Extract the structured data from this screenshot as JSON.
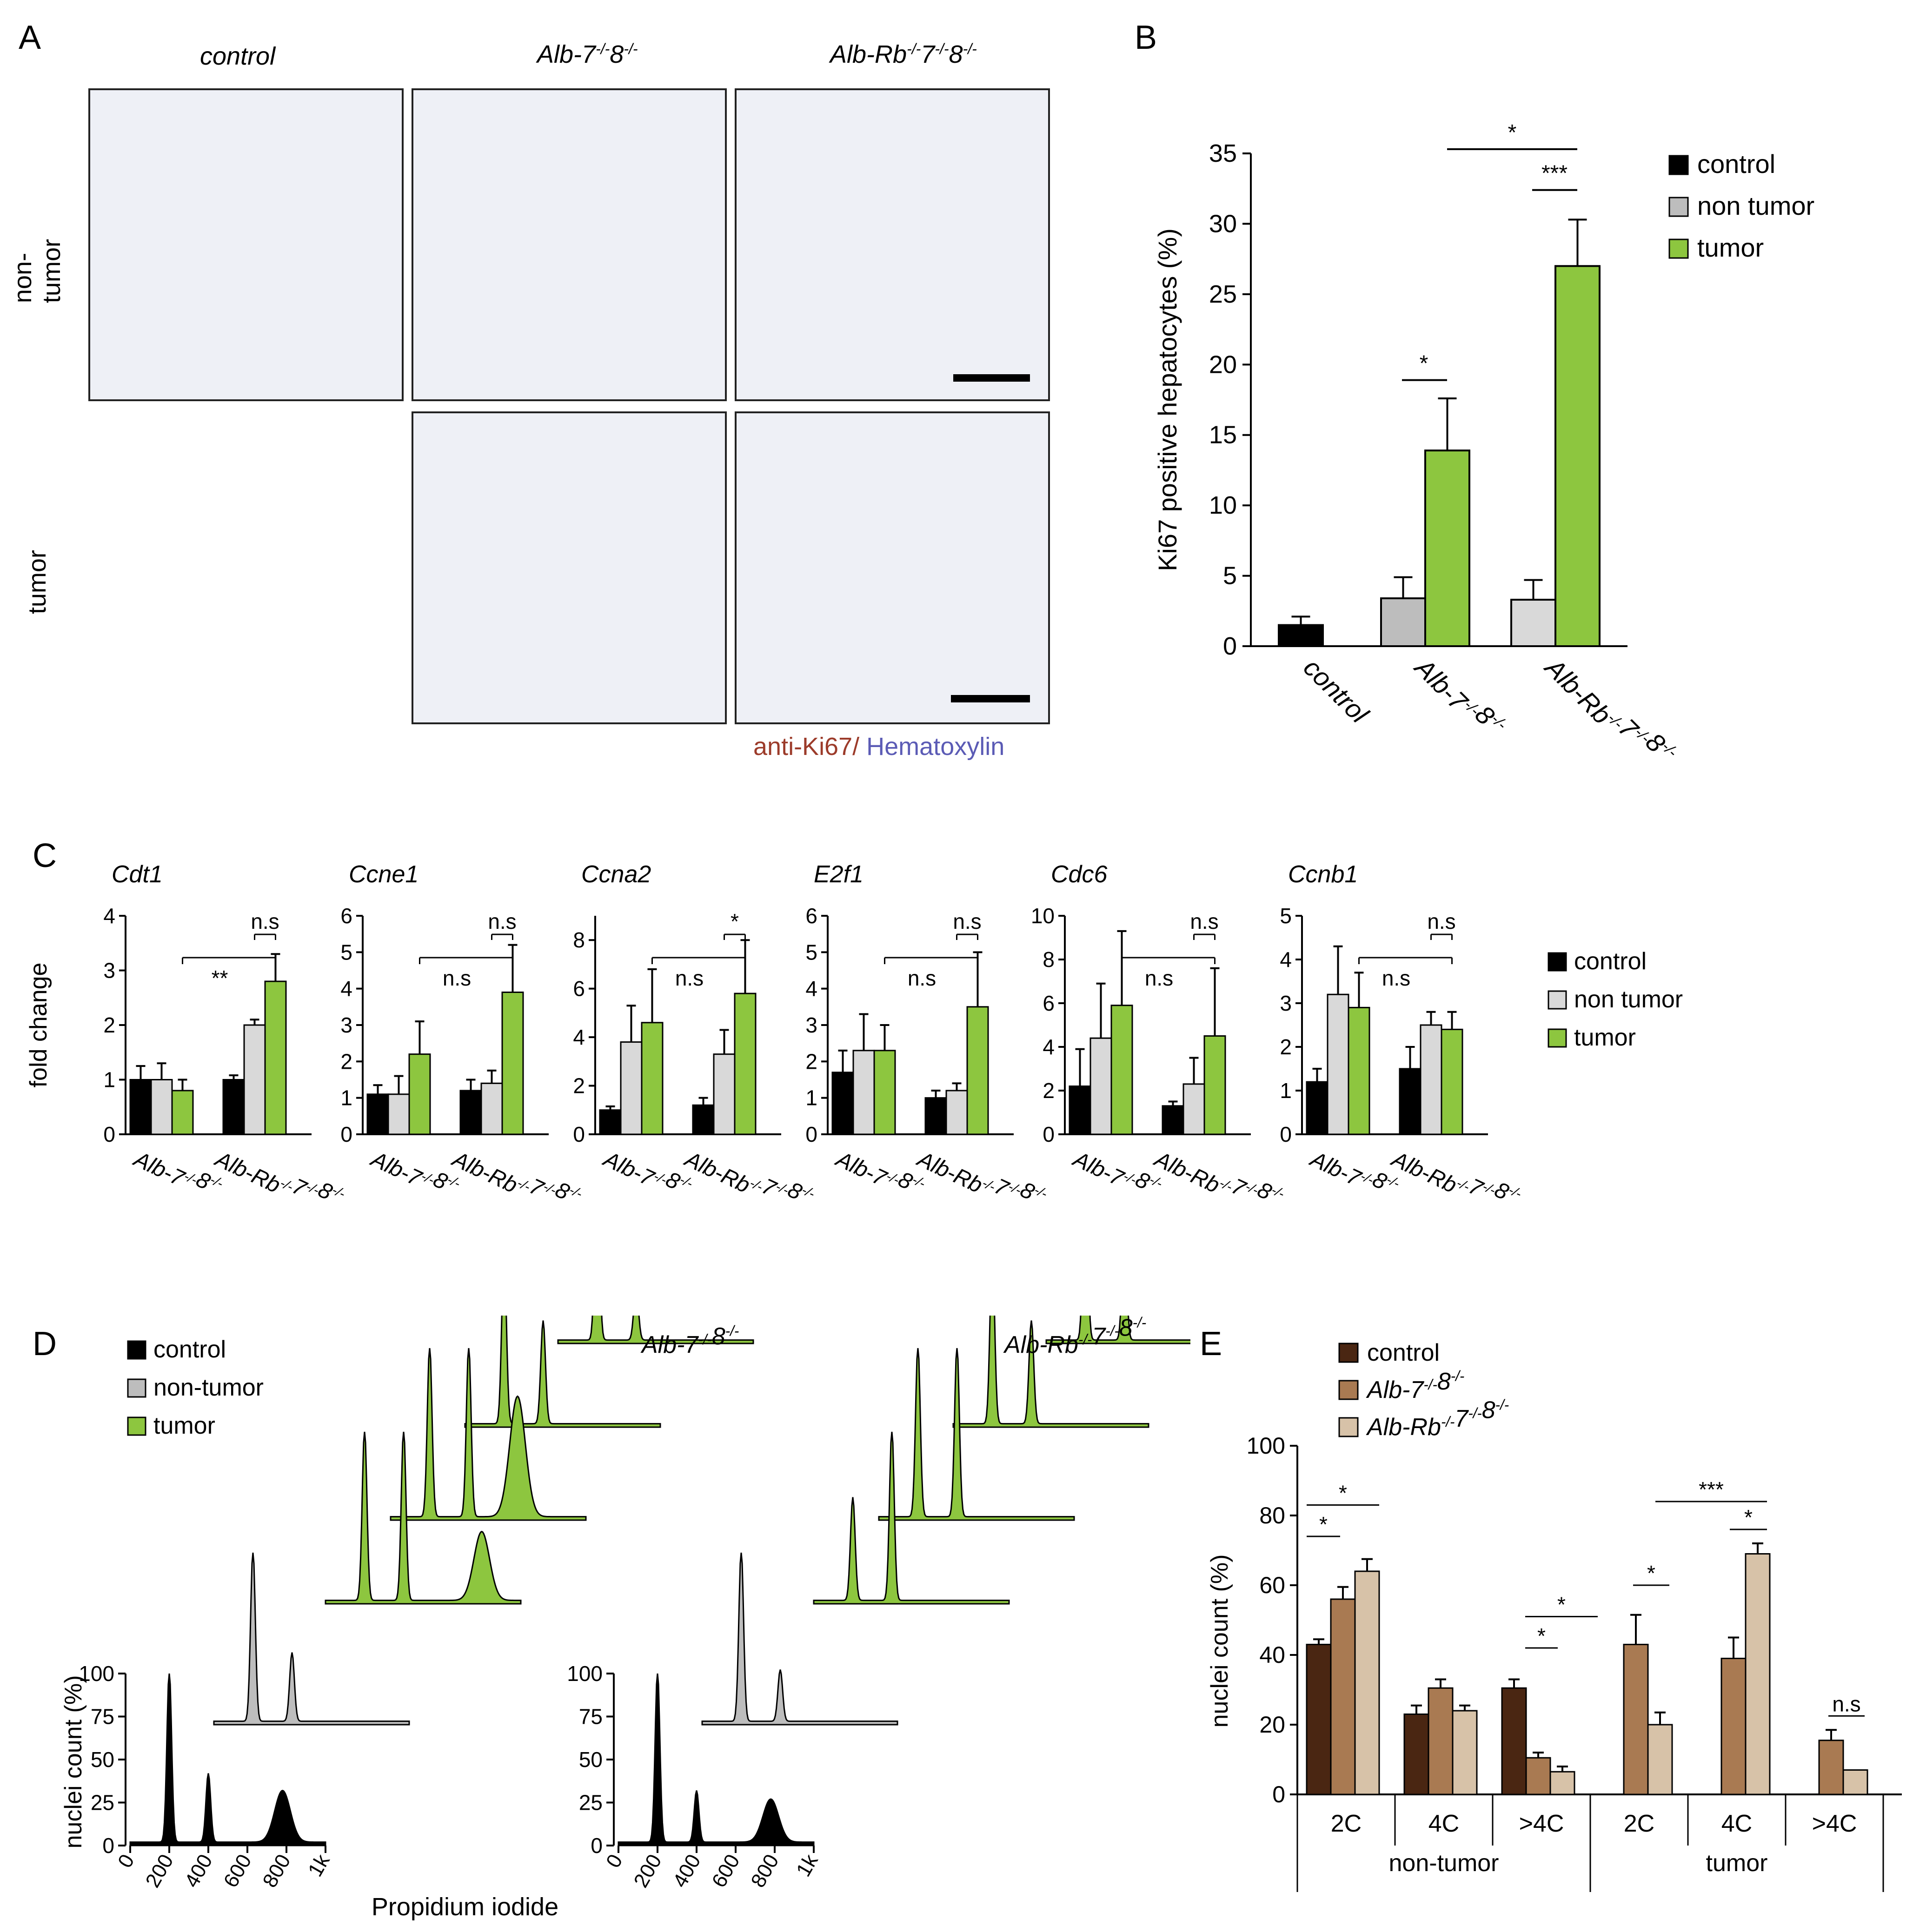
{
  "colors": {
    "control": "#000000",
    "non_tumor": "#bdbdbd",
    "non_tumor_light": "#d9d9d9",
    "tumor": "#8dc63f",
    "ki67": "#9c3b2a",
    "hematoxylin": "#5b5bb5",
    "e_control": "#4a2612",
    "e_alb78": "#a97a52",
    "e_albrb78": "#d7c2a8"
  },
  "panelA": {
    "label": "A",
    "columns": [
      "control",
      "Alb-7",
      "Alb-Rb"
    ],
    "rows": [
      "non-tumor",
      "tumor"
    ],
    "sup": "-/-",
    "col2_parts": [
      "Alb-7",
      "8"
    ],
    "col3_parts": [
      "Alb-Rb",
      "7",
      "8"
    ],
    "stain_ki67": "anti-Ki67/",
    "stain_hema": "Hematoxylin"
  },
  "chart_data": [
    {
      "id": "B",
      "type": "bar",
      "title": "",
      "ylabel": "Ki67 positive hepatocytes (%)",
      "ylim": [
        0,
        35
      ],
      "yticks": [
        "0",
        "5",
        "10",
        "15",
        "20",
        "25",
        "30",
        "35"
      ],
      "groups": [
        "control",
        "Alb-7-/-8-/-",
        "Alb-Rb-/-7-/-8-/-"
      ],
      "group_labels": [
        "control",
        "Alb-7",
        "Alb-Rb"
      ],
      "legend": [
        "control",
        "non tumor",
        "tumor"
      ],
      "series": [
        {
          "name": "control",
          "values": [
            1.5,
            null,
            null
          ],
          "errors": [
            0.6,
            null,
            null
          ]
        },
        {
          "name": "non tumor",
          "values": [
            null,
            3.4,
            3.3
          ],
          "errors": [
            null,
            1.5,
            1.4
          ]
        },
        {
          "name": "tumor",
          "values": [
            null,
            13.9,
            27.0
          ],
          "errors": [
            null,
            3.7,
            3.3
          ]
        }
      ],
      "significance": [
        "*",
        "***",
        "*"
      ]
    },
    {
      "id": "C",
      "type": "bar",
      "ylabel": "fold change",
      "groups": [
        "Alb-7-/-8-/-",
        "Alb-Rb-/-7-/-8-/-"
      ],
      "legend": [
        "control",
        "non tumor",
        "tumor"
      ],
      "subplots": [
        {
          "gene": "Cdt1",
          "ymax": 4,
          "yticks": [
            "0",
            "1",
            "2",
            "3",
            "4"
          ],
          "values": [
            [
              1.0,
              1.0,
              0.8
            ],
            [
              1.0,
              2.0,
              2.8
            ]
          ],
          "errors": [
            [
              0.25,
              0.3,
              0.2
            ],
            [
              0.08,
              0.1,
              0.5
            ]
          ],
          "sig_inner": "n.s",
          "sig_outer": "**"
        },
        {
          "gene": "Ccne1",
          "ymax": 6,
          "yticks": [
            "0",
            "1",
            "2",
            "3",
            "4",
            "5",
            "6"
          ],
          "values": [
            [
              1.1,
              1.1,
              2.2
            ],
            [
              1.2,
              1.4,
              3.9
            ]
          ],
          "errors": [
            [
              0.25,
              0.5,
              0.9
            ],
            [
              0.3,
              0.35,
              1.3
            ]
          ],
          "sig_inner": "n.s",
          "sig_outer": "n.s"
        },
        {
          "gene": "Ccna2",
          "ymax": 9,
          "yticks": [
            "0",
            "2",
            "4",
            "6",
            "8"
          ],
          "values": [
            [
              1.0,
              3.8,
              4.6
            ],
            [
              1.2,
              3.3,
              5.8
            ]
          ],
          "errors": [
            [
              0.15,
              1.5,
              2.2
            ],
            [
              0.3,
              1.0,
              2.2
            ]
          ],
          "sig_inner": "*",
          "sig_outer": "n.s"
        },
        {
          "gene": "E2f1",
          "ymax": 6,
          "yticks": [
            "0",
            "1",
            "2",
            "3",
            "4",
            "5",
            "6"
          ],
          "values": [
            [
              1.7,
              2.3,
              2.3
            ],
            [
              1.0,
              1.2,
              3.5
            ]
          ],
          "errors": [
            [
              0.6,
              1.0,
              0.7
            ],
            [
              0.2,
              0.2,
              1.5
            ]
          ],
          "sig_inner": "n.s",
          "sig_outer": "n.s"
        },
        {
          "gene": "Cdc6",
          "ymax": 10,
          "yticks": [
            "0",
            "2",
            "4",
            "6",
            "8",
            "10"
          ],
          "values": [
            [
              2.2,
              4.4,
              5.9
            ],
            [
              1.3,
              2.3,
              4.5
            ]
          ],
          "errors": [
            [
              1.7,
              2.5,
              3.4
            ],
            [
              0.2,
              1.2,
              3.1
            ]
          ],
          "sig_inner": "n.s",
          "sig_outer": "n.s"
        },
        {
          "gene": "Ccnb1",
          "ymax": 5,
          "yticks": [
            "0",
            "1",
            "2",
            "3",
            "4",
            "5"
          ],
          "values": [
            [
              1.2,
              3.2,
              2.9
            ],
            [
              1.5,
              2.5,
              2.4
            ]
          ],
          "errors": [
            [
              0.3,
              1.1,
              0.8
            ],
            [
              0.5,
              0.3,
              0.4
            ]
          ],
          "sig_inner": "n.s",
          "sig_outer": "n.s"
        }
      ]
    },
    {
      "id": "D",
      "type": "area",
      "title_left": "Alb-7",
      "title_right": "Alb-Rb",
      "xlabel": "Propidium iodide",
      "ylabel": "nuclei count (%)",
      "xticks": [
        "0",
        "200",
        "400",
        "600",
        "800",
        "1k"
      ],
      "yticks": [
        "0",
        "25",
        "50",
        "75",
        "100"
      ],
      "legend": [
        "control",
        "non-tumor",
        "tumor"
      ],
      "histograms_left": [
        {
          "type": "control",
          "peaks": [
            [
              200,
              100
            ],
            [
              400,
              40
            ],
            [
              780,
              30
            ]
          ]
        },
        {
          "type": "non-tumor",
          "peaks": [
            [
              200,
              100
            ],
            [
              400,
              40
            ]
          ]
        },
        {
          "type": "tumor",
          "peaks": [
            [
              200,
              100
            ],
            [
              400,
              100
            ],
            [
              800,
              40
            ]
          ]
        },
        {
          "type": "tumor",
          "peaks": [
            [
              200,
              100
            ],
            [
              400,
              100
            ],
            [
              650,
              70
            ]
          ]
        },
        {
          "type": "tumor",
          "peaks": [
            [
              200,
              100
            ],
            [
              400,
              60
            ]
          ]
        },
        {
          "type": "tumor",
          "peaks": [
            [
              200,
              100
            ],
            [
              400,
              30
            ]
          ]
        }
      ],
      "histograms_right": [
        {
          "type": "control",
          "peaks": [
            [
              200,
              100
            ],
            [
              400,
              30
            ],
            [
              780,
              25
            ]
          ]
        },
        {
          "type": "non-tumor",
          "peaks": [
            [
              200,
              100
            ],
            [
              400,
              30
            ]
          ]
        },
        {
          "type": "tumor",
          "peaks": [
            [
              200,
              60
            ],
            [
              400,
              100
            ]
          ]
        },
        {
          "type": "tumor",
          "peaks": [
            [
              200,
              100
            ],
            [
              400,
              100
            ]
          ]
        },
        {
          "type": "tumor",
          "peaks": [
            [
              200,
              100
            ],
            [
              400,
              60
            ]
          ]
        },
        {
          "type": "tumor",
          "peaks": [
            [
              200,
              100
            ],
            [
              400,
              60
            ]
          ]
        }
      ]
    },
    {
      "id": "E",
      "type": "bar",
      "ylabel": "nuclei count (%)",
      "ylim": [
        0,
        100
      ],
      "yticks": [
        "0",
        "20",
        "40",
        "60",
        "80",
        "100"
      ],
      "categories": [
        "2C",
        "4C",
        ">4C",
        "2C",
        "4C",
        ">4C"
      ],
      "groups": [
        "non-tumor",
        "tumor"
      ],
      "legend": [
        "control",
        "Alb-7",
        "Alb-Rb"
      ],
      "series": [
        {
          "name": "control",
          "values": [
            43,
            23,
            30.5,
            null,
            null,
            null
          ],
          "errors": [
            1.5,
            2.5,
            2.5,
            null,
            null,
            null
          ]
        },
        {
          "name": "Alb-7-/-8-/-",
          "values": [
            56,
            30.5,
            10.5,
            43,
            39,
            15.5
          ],
          "errors": [
            3.5,
            2.5,
            1.5,
            8.5,
            6,
            3
          ]
        },
        {
          "name": "Alb-Rb-/-7-/-8-/-",
          "values": [
            64,
            24,
            6.5,
            20,
            69,
            7
          ],
          "errors": [
            3.5,
            1.5,
            1.5,
            3.5,
            3,
            0
          ]
        }
      ],
      "significance": [
        "*",
        "*",
        "*",
        "*",
        "*",
        "***",
        "*",
        "n.s"
      ]
    }
  ],
  "panel_labels": {
    "B": "B",
    "C": "C",
    "D": "D",
    "E": "E"
  }
}
